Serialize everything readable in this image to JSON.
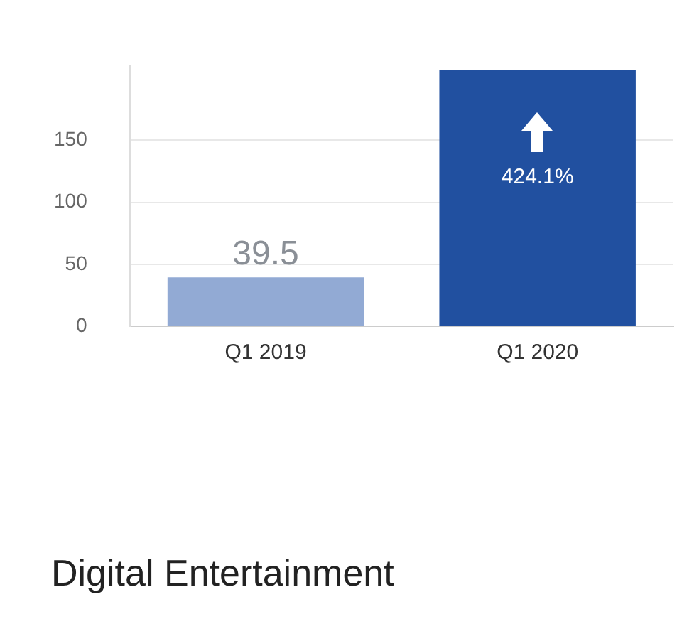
{
  "chart_data": {
    "type": "bar",
    "categories": [
      "Q1 2019",
      "Q1 2020"
    ],
    "values": [
      39.5,
      207.0
    ],
    "colors": [
      "#92aad4",
      "#2150a0"
    ],
    "value_labels": [
      "39.5",
      null
    ],
    "ylim": [
      0,
      210
    ],
    "yticks": [
      0,
      50,
      100,
      150
    ],
    "grid": "y",
    "legend": false,
    "annotations": [
      "424.1%",
      "Digital Entertainment"
    ]
  }
}
